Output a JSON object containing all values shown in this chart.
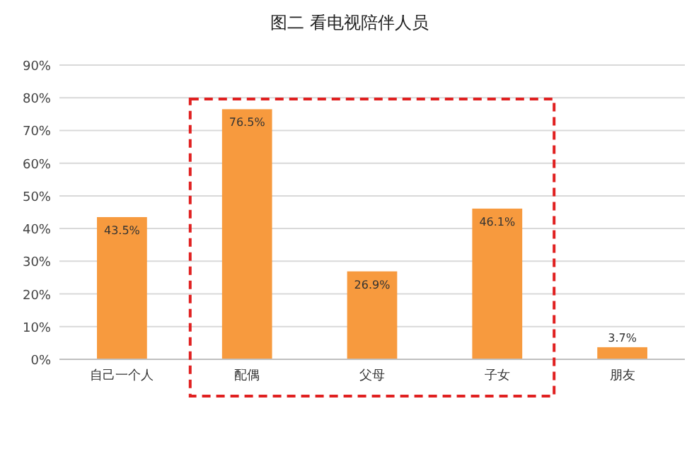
{
  "chart_data": {
    "type": "bar",
    "title": "图二  看电视陪伴人员",
    "categories": [
      "自己一个人",
      "配偶",
      "父母",
      "子女",
      "朋友"
    ],
    "values": [
      43.5,
      76.5,
      26.9,
      46.1,
      3.7
    ],
    "value_labels": [
      "43.5%",
      "76.5%",
      "26.9%",
      "46.1%",
      "3.7%"
    ],
    "color": "#f79a3e",
    "ylim": [
      0,
      90
    ],
    "yticks": [
      {
        "value": 0,
        "label": "0%"
      },
      {
        "value": 10,
        "label": "10%"
      },
      {
        "value": 20,
        "label": "20%"
      },
      {
        "value": 30,
        "label": "30%"
      },
      {
        "value": 40,
        "label": "40%"
      },
      {
        "value": 50,
        "label": "50%"
      },
      {
        "value": 60,
        "label": "60%"
      },
      {
        "value": 70,
        "label": "70%"
      },
      {
        "value": 80,
        "label": "80%"
      },
      {
        "value": 90,
        "label": "90%"
      }
    ],
    "grid": "y"
  }
}
